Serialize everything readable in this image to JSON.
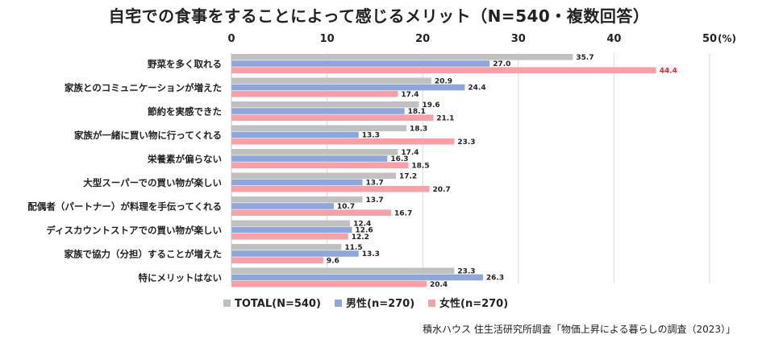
{
  "chart_data": {
    "type": "bar",
    "orientation": "horizontal",
    "title": "自宅での食事をすることによって感じるメリット（N=540・複数回答）",
    "unit_label": "(%)",
    "xlim": [
      0,
      50
    ],
    "ticks": [
      0,
      10,
      20,
      30,
      40,
      50
    ],
    "grid": true,
    "legend_position": "bottom",
    "categories": [
      "野菜を多く取れる",
      "家族とのコミュニケーションが増えた",
      "節約を実感できた",
      "家族が一緒に買い物に行ってくれる",
      "栄養素が偏らない",
      "大型スーパーでの買い物が楽しい",
      "配偶者（パートナー）が料理を手伝ってくれる",
      "ディスカウントストアでの買い物が楽しい",
      "家族で協力（分担）することが増えた",
      "特にメリットはない"
    ],
    "series": [
      {
        "name": "TOTAL(N=540)",
        "color": "#c0c0c0",
        "values": [
          35.7,
          20.9,
          19.6,
          18.3,
          17.4,
          17.2,
          13.7,
          12.4,
          11.5,
          23.3
        ]
      },
      {
        "name": "男性(n=270)",
        "color": "#8ea6dc",
        "values": [
          27.0,
          24.4,
          18.1,
          13.3,
          16.3,
          13.7,
          10.7,
          12.6,
          13.3,
          26.3
        ]
      },
      {
        "name": "女性(n=270)",
        "color": "#f8a0a6",
        "values": [
          44.4,
          17.4,
          21.1,
          23.3,
          18.5,
          20.7,
          16.7,
          12.2,
          9.6,
          20.4
        ]
      }
    ],
    "highlight": {
      "series": 2,
      "index": 0,
      "color": "#e8202c"
    },
    "source": "積水ハウス 住生活研究所調査「物価上昇による暮らしの調査（2023）」"
  }
}
